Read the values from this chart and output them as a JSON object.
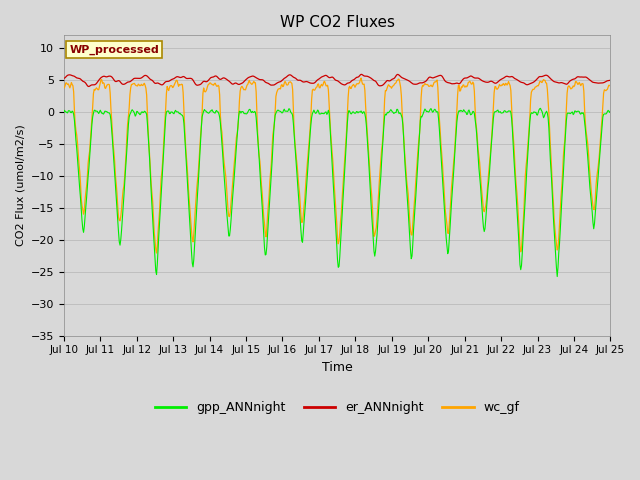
{
  "title": "WP CO2 Fluxes",
  "xlabel": "Time",
  "ylabel": "CO2 Flux (umol/m2/s)",
  "ylim": [
    -35,
    12
  ],
  "yticks": [
    10,
    5,
    0,
    -5,
    -10,
    -15,
    -20,
    -25,
    -30,
    -35
  ],
  "n_days": 15,
  "start_day": 10,
  "end_day": 25,
  "points_per_day": 48,
  "lines": {
    "gpp_ANNnight": {
      "color": "#00EE00",
      "lw": 0.8
    },
    "er_ANNnight": {
      "color": "#CC0000",
      "lw": 0.9
    },
    "wc_gf": {
      "color": "#FFA500",
      "lw": 0.9
    }
  },
  "legend_label": "WP_processed",
  "legend_text_color": "#880000",
  "legend_bg_color": "#FFFFCC",
  "legend_edge_color": "#AA8800",
  "bg_color": "#D8D8D8",
  "plot_bg_color": "#D8D8D8",
  "grid_color": "#BBBBBB",
  "figsize": [
    6.4,
    4.8
  ],
  "dpi": 100
}
